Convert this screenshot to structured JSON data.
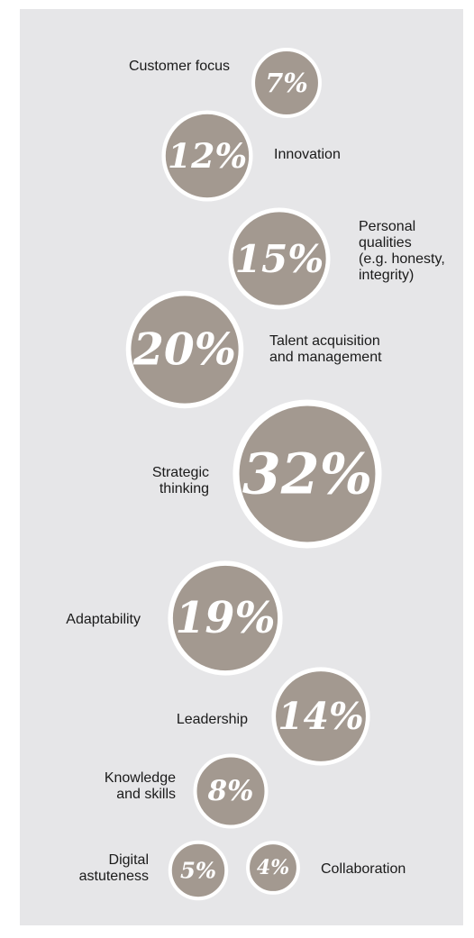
{
  "chart_data": {
    "type": "bubble",
    "unit": "%",
    "series": [
      {
        "category": "Customer focus",
        "value": 7,
        "label": "7%"
      },
      {
        "category": "Innovation",
        "value": 12,
        "label": "12%"
      },
      {
        "category": "Personal qualities (e.g. honesty, integrity)",
        "value": 15,
        "label": "15%"
      },
      {
        "category": "Talent acquisition and management",
        "value": 20,
        "label": "20%"
      },
      {
        "category": "Strategic thinking",
        "value": 32,
        "label": "32%"
      },
      {
        "category": "Adaptability",
        "value": 19,
        "label": "19%"
      },
      {
        "category": "Leadership",
        "value": 14,
        "label": "14%"
      },
      {
        "category": "Knowledge and skills",
        "value": 8,
        "label": "8%"
      },
      {
        "category": "Digital astuteness",
        "value": 5,
        "label": "5%"
      },
      {
        "category": "Collaboration",
        "value": 4,
        "label": "4%"
      }
    ],
    "labels": {
      "customer_focus": "Customer focus",
      "innovation": "Innovation",
      "personal_l1": "Personal",
      "personal_l2": "qualities",
      "personal_l3": "(e.g. honesty,",
      "personal_l4": "integrity)",
      "talent_l1": "Talent acquisition",
      "talent_l2": "and management",
      "strategic_l1": "Strategic",
      "strategic_l2": "thinking",
      "adaptability": "Adaptability",
      "leadership": "Leadership",
      "knowledge_l1": "Knowledge",
      "knowledge_l2": "and skills",
      "digital_l1": "Digital",
      "digital_l2": "astuteness",
      "collaboration": "Collaboration"
    },
    "colors": {
      "bubble": "#a39990",
      "bubble_border": "#ffffff",
      "text": "#ffffff",
      "background": "#e6e6e8"
    }
  }
}
